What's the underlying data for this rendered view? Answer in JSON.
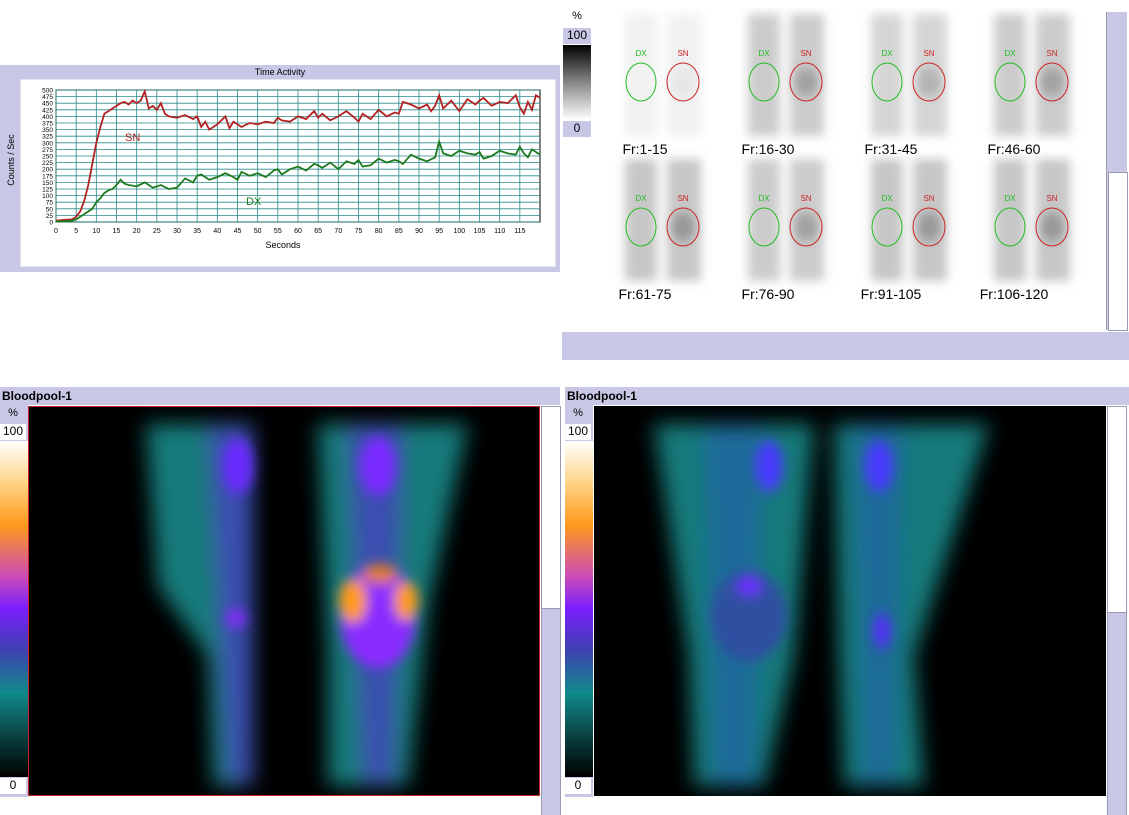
{
  "time_activity": {
    "title": "Time Activity",
    "xlabel": "Seconds",
    "ylabel": "Counts / Sec",
    "series_labels": [
      "SN",
      "DX"
    ]
  },
  "chart_data": {
    "type": "line",
    "title": "Time Activity",
    "xlabel": "Seconds",
    "ylabel": "Counts / Sec",
    "xlim": [
      0,
      120
    ],
    "ylim": [
      0,
      500
    ],
    "xticks": [
      0,
      5,
      10,
      15,
      20,
      25,
      30,
      35,
      40,
      45,
      50,
      55,
      60,
      65,
      70,
      75,
      80,
      85,
      90,
      95,
      100,
      105,
      110,
      115
    ],
    "yticks": [
      0,
      25,
      50,
      75,
      100,
      125,
      150,
      175,
      200,
      225,
      250,
      275,
      300,
      325,
      350,
      375,
      400,
      425,
      450,
      475,
      500
    ],
    "grid": true,
    "series": [
      {
        "name": "SN",
        "color": "#b22222",
        "x": [
          0,
          2,
          4,
          5,
          6,
          7,
          8,
          9,
          10,
          11,
          12,
          13,
          14,
          15,
          16,
          17,
          18,
          19,
          20,
          21,
          22,
          23,
          24,
          25,
          26,
          27,
          28,
          30,
          32,
          34,
          35,
          36,
          37,
          38,
          40,
          42,
          43,
          44,
          45,
          46,
          48,
          50,
          52,
          54,
          55,
          56,
          58,
          60,
          62,
          64,
          65,
          66,
          68,
          70,
          72,
          74,
          75,
          76,
          78,
          80,
          82,
          84,
          85,
          86,
          88,
          90,
          92,
          93,
          94,
          95,
          96,
          98,
          100,
          102,
          104,
          105,
          106,
          108,
          110,
          112,
          114,
          115,
          116,
          117,
          118,
          119,
          120
        ],
        "y": [
          5,
          8,
          10,
          20,
          40,
          80,
          140,
          220,
          300,
          360,
          410,
          420,
          430,
          440,
          450,
          455,
          445,
          460,
          450,
          460,
          495,
          430,
          440,
          425,
          450,
          410,
          400,
          395,
          405,
          390,
          400,
          360,
          380,
          350,
          370,
          400,
          355,
          380,
          370,
          360,
          375,
          370,
          380,
          375,
          395,
          385,
          380,
          400,
          390,
          420,
          395,
          410,
          385,
          400,
          420,
          395,
          380,
          410,
          390,
          425,
          400,
          415,
          410,
          455,
          445,
          430,
          445,
          420,
          440,
          480,
          430,
          460,
          420,
          465,
          445,
          460,
          470,
          440,
          455,
          450,
          480,
          435,
          410,
          455,
          425,
          480,
          470
        ]
      },
      {
        "name": "DX",
        "color": "#1e7a1e",
        "x": [
          0,
          2,
          4,
          5,
          6,
          7,
          8,
          9,
          10,
          11,
          12,
          13,
          14,
          15,
          16,
          17,
          18,
          20,
          22,
          24,
          26,
          28,
          30,
          32,
          34,
          35,
          36,
          38,
          40,
          42,
          44,
          45,
          46,
          48,
          50,
          52,
          54,
          55,
          56,
          58,
          60,
          62,
          64,
          65,
          66,
          68,
          70,
          72,
          74,
          75,
          76,
          78,
          80,
          82,
          84,
          85,
          86,
          88,
          90,
          92,
          94,
          95,
          96,
          98,
          100,
          102,
          104,
          105,
          106,
          108,
          110,
          112,
          114,
          115,
          116,
          117,
          118,
          120
        ],
        "y": [
          2,
          3,
          5,
          10,
          20,
          30,
          40,
          50,
          75,
          90,
          110,
          120,
          125,
          140,
          160,
          145,
          140,
          135,
          150,
          130,
          140,
          125,
          130,
          165,
          150,
          175,
          180,
          160,
          170,
          185,
          170,
          160,
          190,
          175,
          185,
          170,
          195,
          200,
          180,
          200,
          210,
          195,
          220,
          215,
          205,
          225,
          200,
          230,
          220,
          235,
          210,
          215,
          240,
          225,
          235,
          230,
          220,
          255,
          240,
          230,
          245,
          305,
          260,
          250,
          270,
          260,
          255,
          265,
          240,
          250,
          270,
          260,
          255,
          285,
          260,
          245,
          275,
          255
        ]
      }
    ],
    "annotations": [
      "SN",
      "DX"
    ]
  },
  "frames": {
    "percent_symbol": "%",
    "max_label": "100",
    "min_label": "0",
    "roi_labels": {
      "left": "DX",
      "right": "SN"
    },
    "items": [
      {
        "label": "Fr:1-15",
        "intensity": 0.15
      },
      {
        "label": "Fr:16-30",
        "intensity": 0.55
      },
      {
        "label": "Fr:31-45",
        "intensity": 0.45
      },
      {
        "label": "Fr:46-60",
        "intensity": 0.55
      },
      {
        "label": "Fr:61-75",
        "intensity": 0.6
      },
      {
        "label": "Fr:76-90",
        "intensity": 0.55
      },
      {
        "label": "Fr:91-105",
        "intensity": 0.6
      },
      {
        "label": "Fr:106-120",
        "intensity": 0.6
      }
    ]
  },
  "bloodpool_left": {
    "title": "Bloodpool-1",
    "percent_symbol": "%",
    "max_label": "100",
    "min_label": "0"
  },
  "bloodpool_right": {
    "title": "Bloodpool-1",
    "percent_symbol": "%",
    "max_label": "100",
    "min_label": "0"
  },
  "colors": {
    "panel": "#c8c8e6",
    "sn": "#b22222",
    "dx": "#1e7a1e",
    "grid": "#2a8a8a",
    "roi_selected": "#cc2222"
  }
}
